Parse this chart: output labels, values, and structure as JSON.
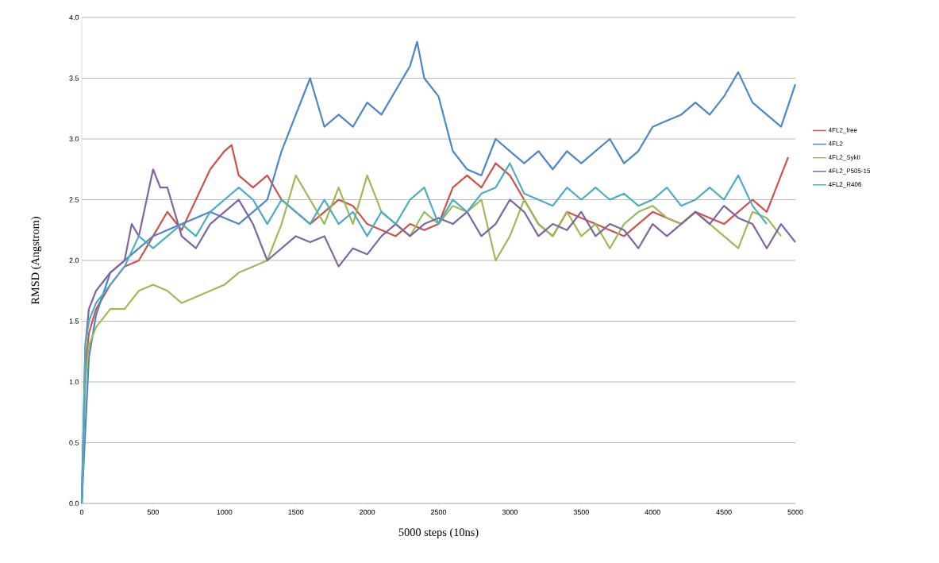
{
  "chart_data": {
    "type": "line",
    "xlabel": "5000 steps (10ns)",
    "ylabel": "RMSD (Angstrom)",
    "xlim": [
      0,
      5000
    ],
    "xticks": [
      0,
      500,
      1000,
      1500,
      2000,
      2500,
      3000,
      3500,
      4000,
      4500,
      5000
    ],
    "ylim": [
      0,
      4
    ],
    "yticks": [
      {
        "value": 0,
        "label": "0.0"
      },
      {
        "value": 0.5,
        "label": "0.5"
      },
      {
        "value": 1,
        "label": "1.0"
      },
      {
        "value": 1.5,
        "label": "1.5"
      },
      {
        "value": 2,
        "label": "2.0"
      },
      {
        "value": 2.5,
        "label": "2.5"
      },
      {
        "value": 3,
        "label": "3.0"
      },
      {
        "value": 3.5,
        "label": "3.5"
      },
      {
        "value": 4,
        "label": "4.0"
      }
    ],
    "grid": "y",
    "legend": "right",
    "marker": "none",
    "line_style": "solid",
    "series": [
      {
        "name": "4FL2_free",
        "color": "#d0504a",
        "x": [
          0,
          25,
          50,
          100,
          200,
          300,
          400,
          500,
          600,
          700,
          800,
          900,
          1000,
          1050,
          1100,
          1200,
          1300,
          1400,
          1500,
          1600,
          1700,
          1800,
          1900,
          2000,
          2100,
          2200,
          2300,
          2400,
          2500,
          2600,
          2700,
          2800,
          2900,
          3000,
          3100,
          3200,
          3300,
          3400,
          3500,
          3600,
          3700,
          3800,
          3900,
          4000,
          4100,
          4200,
          4300,
          4400,
          4500,
          4600,
          4700,
          4800,
          4900,
          4950
        ],
        "values": [
          0,
          1.1,
          1.4,
          1.6,
          1.8,
          1.95,
          2.0,
          2.2,
          2.4,
          2.25,
          2.5,
          2.75,
          2.9,
          2.95,
          2.7,
          2.6,
          2.7,
          2.5,
          2.4,
          2.3,
          2.4,
          2.5,
          2.45,
          2.3,
          2.25,
          2.2,
          2.3,
          2.25,
          2.3,
          2.6,
          2.7,
          2.6,
          2.8,
          2.7,
          2.5,
          2.3,
          2.2,
          2.4,
          2.35,
          2.3,
          2.25,
          2.2,
          2.3,
          2.4,
          2.35,
          2.3,
          2.4,
          2.35,
          2.3,
          2.4,
          2.5,
          2.4,
          2.7,
          2.85
        ]
      },
      {
        "name": "4FL2",
        "color": "#4a86c8",
        "x": [
          0,
          25,
          50,
          100,
          200,
          300,
          400,
          500,
          600,
          700,
          800,
          900,
          1000,
          1100,
          1200,
          1300,
          1400,
          1500,
          1600,
          1700,
          1800,
          1900,
          2000,
          2100,
          2200,
          2300,
          2350,
          2400,
          2500,
          2600,
          2700,
          2800,
          2900,
          3000,
          3100,
          3200,
          3300,
          3400,
          3500,
          3600,
          3700,
          3800,
          3900,
          4000,
          4100,
          4200,
          4300,
          4400,
          4500,
          4600,
          4700,
          4800,
          4900,
          5000
        ],
        "values": [
          0,
          0.6,
          1.2,
          1.55,
          1.9,
          2.0,
          2.1,
          2.2,
          2.25,
          2.3,
          2.35,
          2.4,
          2.35,
          2.3,
          2.4,
          2.5,
          2.9,
          3.2,
          3.5,
          3.1,
          3.2,
          3.1,
          3.3,
          3.2,
          3.4,
          3.6,
          3.8,
          3.5,
          3.35,
          2.9,
          2.75,
          2.7,
          3.0,
          2.9,
          2.8,
          2.9,
          2.75,
          2.9,
          2.8,
          2.9,
          3.0,
          2.8,
          2.9,
          3.1,
          3.15,
          3.2,
          3.3,
          3.2,
          3.35,
          3.55,
          3.3,
          3.2,
          3.1,
          3.45
        ]
      },
      {
        "name": "4FL2_SykII",
        "color": "#9bbb59",
        "x": [
          0,
          25,
          50,
          100,
          200,
          300,
          400,
          500,
          600,
          700,
          800,
          900,
          1000,
          1100,
          1200,
          1300,
          1400,
          1500,
          1600,
          1700,
          1800,
          1900,
          2000,
          2100,
          2200,
          2300,
          2400,
          2500,
          2600,
          2700,
          2800,
          2900,
          3000,
          3100,
          3200,
          3300,
          3400,
          3500,
          3600,
          3700,
          3800,
          3900,
          4000,
          4100,
          4200,
          4300,
          4400,
          4500,
          4600,
          4700,
          4800,
          4900
        ],
        "values": [
          0,
          1.0,
          1.3,
          1.45,
          1.6,
          1.6,
          1.75,
          1.8,
          1.75,
          1.65,
          1.7,
          1.75,
          1.8,
          1.9,
          1.95,
          2.0,
          2.3,
          2.7,
          2.5,
          2.3,
          2.6,
          2.3,
          2.7,
          2.4,
          2.3,
          2.2,
          2.4,
          2.3,
          2.45,
          2.4,
          2.5,
          2.0,
          2.2,
          2.5,
          2.3,
          2.2,
          2.4,
          2.2,
          2.3,
          2.1,
          2.3,
          2.4,
          2.45,
          2.35,
          2.3,
          2.4,
          2.3,
          2.2,
          2.1,
          2.4,
          2.35,
          2.2
        ]
      },
      {
        "name": "4FL2_P505-15",
        "color": "#8064a2",
        "x": [
          0,
          25,
          50,
          100,
          200,
          300,
          350,
          400,
          500,
          550,
          600,
          700,
          800,
          900,
          1000,
          1100,
          1200,
          1300,
          1400,
          1500,
          1600,
          1700,
          1800,
          1900,
          2000,
          2100,
          2200,
          2300,
          2400,
          2500,
          2600,
          2700,
          2800,
          2900,
          3000,
          3100,
          3200,
          3300,
          3400,
          3500,
          3600,
          3700,
          3800,
          3900,
          4000,
          4100,
          4200,
          4300,
          4400,
          4500,
          4600,
          4700,
          4800,
          4900,
          5000
        ],
        "values": [
          0,
          1.3,
          1.6,
          1.75,
          1.9,
          2.0,
          2.3,
          2.2,
          2.75,
          2.6,
          2.6,
          2.2,
          2.1,
          2.3,
          2.4,
          2.5,
          2.3,
          2.0,
          2.1,
          2.2,
          2.15,
          2.2,
          1.95,
          2.1,
          2.05,
          2.2,
          2.3,
          2.2,
          2.3,
          2.35,
          2.3,
          2.4,
          2.2,
          2.3,
          2.5,
          2.4,
          2.2,
          2.3,
          2.25,
          2.4,
          2.2,
          2.3,
          2.25,
          2.1,
          2.3,
          2.2,
          2.3,
          2.4,
          2.3,
          2.45,
          2.35,
          2.3,
          2.1,
          2.3,
          2.15
        ]
      },
      {
        "name": "4FL2_R406",
        "color": "#4bacc6",
        "x": [
          0,
          25,
          50,
          100,
          200,
          300,
          400,
          500,
          600,
          700,
          800,
          900,
          1000,
          1100,
          1200,
          1300,
          1400,
          1500,
          1600,
          1700,
          1800,
          1900,
          2000,
          2100,
          2200,
          2300,
          2400,
          2500,
          2600,
          2700,
          2800,
          2900,
          3000,
          3100,
          3200,
          3300,
          3400,
          3500,
          3600,
          3700,
          3800,
          3900,
          4000,
          4100,
          4200,
          4300,
          4400,
          4500,
          4600,
          4700,
          4800
        ],
        "values": [
          0,
          1.3,
          1.5,
          1.65,
          1.8,
          1.95,
          2.2,
          2.1,
          2.2,
          2.3,
          2.2,
          2.4,
          2.5,
          2.6,
          2.5,
          2.3,
          2.5,
          2.4,
          2.3,
          2.5,
          2.3,
          2.4,
          2.2,
          2.4,
          2.3,
          2.5,
          2.6,
          2.3,
          2.5,
          2.4,
          2.55,
          2.6,
          2.8,
          2.55,
          2.5,
          2.45,
          2.6,
          2.5,
          2.6,
          2.5,
          2.55,
          2.45,
          2.5,
          2.6,
          2.45,
          2.5,
          2.6,
          2.5,
          2.7,
          2.45,
          2.3
        ]
      }
    ]
  }
}
